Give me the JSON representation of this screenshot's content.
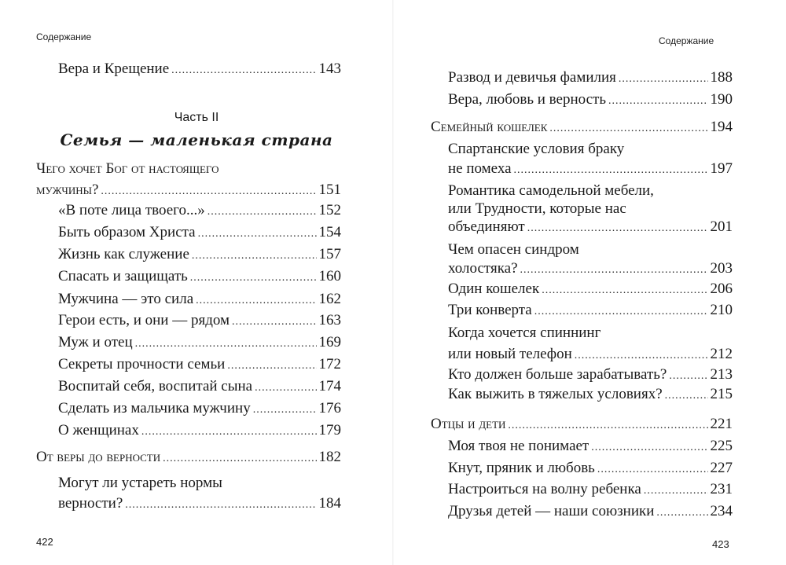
{
  "left_page": {
    "header": "Содержание",
    "page_number": "422",
    "entries_before": [
      {
        "lines": [
          "Вера и Крещение"
        ],
        "page": "143",
        "level": 2
      }
    ],
    "part_label": "Часть II",
    "part_title": "Семья — маленькая страна",
    "entries": [
      {
        "lines": [
          "Чего хочет Бог от настоящего",
          "мужчины?"
        ],
        "page": "151",
        "level": 1
      },
      {
        "lines": [
          "«В поте лица твоего...»"
        ],
        "page": "152",
        "level": 2
      },
      {
        "lines": [
          "Быть образом Христа"
        ],
        "page": "154",
        "level": 2
      },
      {
        "lines": [
          "Жизнь как служение"
        ],
        "page": "157",
        "level": 2
      },
      {
        "lines": [
          "Спасать и защищать"
        ],
        "page": "160",
        "level": 2
      },
      {
        "lines": [
          "Мужчина — это сила"
        ],
        "page": "162",
        "level": 2
      },
      {
        "lines": [
          "Герои есть, и они — рядом"
        ],
        "page": "163",
        "level": 2
      },
      {
        "lines": [
          "Муж и отец"
        ],
        "page": "169",
        "level": 2
      },
      {
        "lines": [
          "Секреты прочности семьи"
        ],
        "page": "172",
        "level": 2
      },
      {
        "lines": [
          "Воспитай себя, воспитай сына"
        ],
        "page": "174",
        "level": 2
      },
      {
        "lines": [
          "Сделать из мальчика мужчину"
        ],
        "page": "176",
        "level": 2
      },
      {
        "lines": [
          "О женщинах"
        ],
        "page": "179",
        "level": 2
      },
      {
        "lines": [
          "От веры до верности"
        ],
        "page": "182",
        "level": 1
      },
      {
        "lines": [
          "Могут ли устареть нормы",
          "верности?"
        ],
        "page": "184",
        "level": 2
      }
    ]
  },
  "right_page": {
    "header": "Содержание",
    "page_number": "423",
    "entries": [
      {
        "lines": [
          "Развод и девичья фамилия"
        ],
        "page": "188",
        "level": 2
      },
      {
        "lines": [
          "Вера, любовь и верность"
        ],
        "page": "190",
        "level": 2
      },
      {
        "lines": [
          "Семейный кошелек"
        ],
        "page": "194",
        "level": 1
      },
      {
        "lines": [
          "Спартанские условия браку",
          "не помеха"
        ],
        "page": "197",
        "level": 2
      },
      {
        "lines": [
          "Романтика самодельной мебели,",
          "или Трудности, которые нас",
          "объединяют"
        ],
        "page": "201",
        "level": 2
      },
      {
        "lines": [
          "Чем опасен синдром",
          "холостяка?"
        ],
        "page": "203",
        "level": 2
      },
      {
        "lines": [
          "Один кошелек"
        ],
        "page": "206",
        "level": 2
      },
      {
        "lines": [
          "Три конверта"
        ],
        "page": "210",
        "level": 2
      },
      {
        "lines": [
          "Когда хочется спиннинг",
          "или новый телефон"
        ],
        "page": "212",
        "level": 2
      },
      {
        "lines": [
          "Кто должен больше зарабатывать?"
        ],
        "page": "213",
        "level": 2
      },
      {
        "lines": [
          "Как выжить в тяжелых условиях?"
        ],
        "page": "215",
        "level": 2
      },
      {
        "lines": [
          "Отцы и дети"
        ],
        "page": "221",
        "level": 1
      },
      {
        "lines": [
          "Моя твоя не понимает"
        ],
        "page": "225",
        "level": 2
      },
      {
        "lines": [
          "Кнут, пряник и любовь"
        ],
        "page": "227",
        "level": 2
      },
      {
        "lines": [
          "Настроиться на волну ребенка"
        ],
        "page": "231",
        "level": 2
      },
      {
        "lines": [
          "Друзья детей — наши союзники"
        ],
        "page": "234",
        "level": 2
      }
    ]
  }
}
